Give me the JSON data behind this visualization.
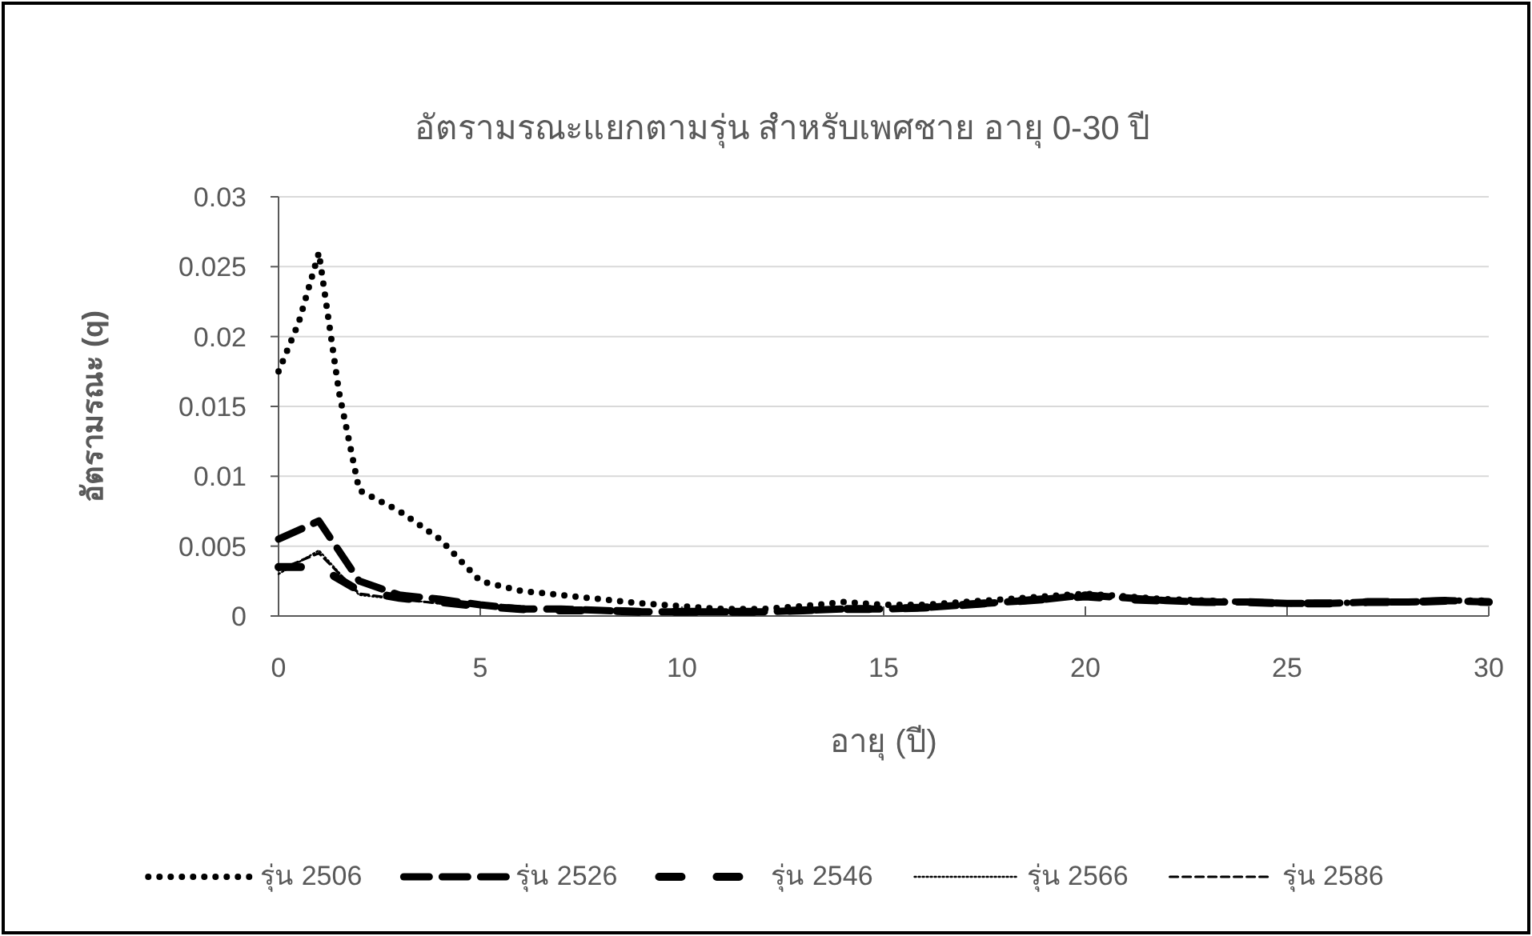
{
  "chart_data": {
    "type": "line",
    "title": "อัตรามรณะแยกตามรุ่น สำหรับเพศชาย อายุ 0-30 ปี",
    "xlabel": "อายุ (ปี)",
    "ylabel": "อัตรามรณะ (q)",
    "x": [
      0,
      1,
      2,
      3,
      4,
      5,
      6,
      7,
      8,
      9,
      10,
      11,
      12,
      13,
      14,
      15,
      16,
      17,
      18,
      19,
      20,
      21,
      22,
      23,
      24,
      25,
      26,
      27,
      28,
      29,
      30
    ],
    "xlim": [
      0,
      30
    ],
    "xticks": [
      0,
      5,
      10,
      15,
      20,
      25,
      30
    ],
    "ylim": [
      0,
      0.03
    ],
    "yticks": [
      0,
      0.005,
      0.01,
      0.015,
      0.02,
      0.025,
      0.03
    ],
    "grid": "y",
    "legend": "bottom",
    "marker": "none",
    "series": [
      {
        "name": "รุ่น 2506",
        "color": "#000000",
        "line_style": "dotted",
        "x": [
          0,
          0.5,
          1,
          1.5,
          2,
          3,
          4,
          5,
          6,
          7,
          8,
          9,
          10,
          11,
          12,
          13,
          14,
          15,
          16,
          17,
          18,
          19,
          20,
          21,
          22,
          23,
          24,
          25,
          26,
          27,
          28,
          29,
          30
        ],
        "values": [
          0.0175,
          0.021,
          0.026,
          0.016,
          0.009,
          0.0075,
          0.0055,
          0.0025,
          0.0018,
          0.0015,
          0.0012,
          0.0009,
          0.0007,
          0.0005,
          0.0005,
          0.0007,
          0.001,
          0.0008,
          0.0008,
          0.001,
          0.0012,
          0.0014,
          0.0016,
          0.0014,
          0.0012,
          0.0011,
          0.001,
          0.0009,
          0.0009,
          0.001,
          0.001,
          0.0011,
          0.0011
        ]
      },
      {
        "name": "รุ่น 2526",
        "color": "#000000",
        "line_style": "dashed",
        "values": [
          0.0055,
          0.0068,
          0.0025,
          0.0015,
          0.0012,
          0.0008,
          0.0005,
          0.0005,
          0.0004,
          0.0003,
          0.0003,
          0.0003,
          0.0003,
          0.0004,
          0.0005,
          0.0005,
          0.0006,
          0.0008,
          0.001,
          0.0012,
          0.0015,
          0.0013,
          0.0011,
          0.001,
          0.001,
          0.0009,
          0.0009,
          0.001,
          0.001,
          0.0011,
          0.001
        ]
      },
      {
        "name": "รุ่น 2546",
        "color": "#000000",
        "line_style": "dashed",
        "values": [
          0.0035,
          0.0035,
          0.0018,
          0.0013,
          0.001,
          0.0007,
          0.0005,
          0.0004,
          0.0004,
          0.0003,
          0.0003,
          0.0003,
          0.0003,
          0.0004,
          0.0005,
          0.0005,
          0.0006,
          0.0008,
          0.001,
          0.0012,
          0.0014,
          0.0012,
          0.0011,
          0.001,
          0.001,
          0.0009,
          0.0009,
          0.001,
          0.001,
          0.0011,
          0.001
        ]
      },
      {
        "name": "รุ่น 2566",
        "color": "#000000",
        "line_style": "dotted",
        "values": [
          0.003,
          0.0047,
          0.0015,
          0.0012,
          0.0009,
          null,
          null,
          null,
          null,
          null,
          null,
          null,
          null,
          null,
          null,
          null,
          null,
          null,
          null,
          null,
          null,
          null,
          null,
          null,
          null,
          null,
          null,
          null,
          null,
          null,
          null
        ]
      },
      {
        "name": "รุ่น 2586",
        "color": "#000000",
        "line_style": "dashed",
        "values": [
          0.0033,
          0.0045,
          0.0016,
          0.0012,
          0.0009,
          null,
          null,
          null,
          null,
          null,
          null,
          null,
          null,
          null,
          null,
          null,
          null,
          null,
          null,
          null,
          null,
          null,
          null,
          null,
          null,
          null,
          null,
          null,
          null,
          null,
          null
        ]
      }
    ]
  }
}
